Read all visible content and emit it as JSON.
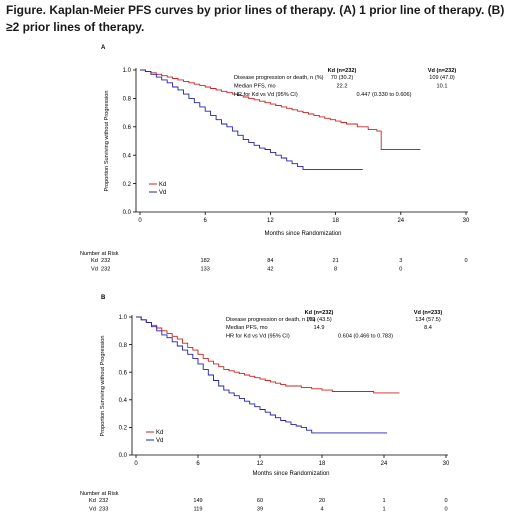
{
  "figure": {
    "title": "Figure. Kaplan-Meier PFS curves by prior lines of therapy. (A) 1 prior line of therapy. (B) ≥2 prior lines of therapy."
  },
  "colors": {
    "kd": "#cc2222",
    "vd": "#2222aa",
    "axis": "#000000"
  },
  "chart_data": [
    {
      "type": "line",
      "panel_label": "A",
      "xlabel": "Months since Randomization",
      "ylabel": "Proportion Surviving without Progression",
      "xlim": [
        0,
        30
      ],
      "ylim": [
        0,
        1.0
      ],
      "xticks": [
        0,
        6,
        12,
        18,
        24,
        30
      ],
      "yticks": [
        0.0,
        0.2,
        0.4,
        0.6,
        0.8,
        1.0
      ],
      "ytick_labels": [
        "0.0",
        "0.2",
        "0.4",
        "0.6",
        "0.8",
        "1.0"
      ],
      "legend": [
        "Kd",
        "Vd"
      ],
      "legend_position": "bottom-left",
      "stats": {
        "headers": [
          "Kd (n=232)",
          "Vd (n=232)"
        ],
        "rows": [
          {
            "label": "Disease progression or death, n (%)",
            "kd": "70 (30.2)",
            "vd": "109 (47.0)"
          },
          {
            "label": "Median PFS, mo",
            "kd": "22.2",
            "vd": "10.1"
          },
          {
            "label": "HR for Kd vs Vd (95% CI)",
            "hr": "0.447 (0.330 to 0.606)"
          }
        ]
      },
      "series": [
        {
          "name": "Kd",
          "color": "#cc2222",
          "x": [
            0,
            0.5,
            1,
            1.5,
            2,
            2.5,
            3,
            3.5,
            4,
            4.5,
            5,
            5.5,
            6,
            6.5,
            7,
            7.5,
            8,
            8.5,
            9,
            9.5,
            10,
            10.5,
            11,
            11.5,
            12,
            12.5,
            13,
            13.5,
            14,
            14.5,
            15,
            15.5,
            16,
            16.5,
            17,
            17.5,
            18,
            18.5,
            19,
            20,
            21,
            21.8,
            22.2,
            24,
            25.8
          ],
          "y": [
            1.0,
            0.99,
            0.98,
            0.97,
            0.96,
            0.95,
            0.94,
            0.93,
            0.92,
            0.91,
            0.9,
            0.89,
            0.88,
            0.87,
            0.86,
            0.85,
            0.84,
            0.83,
            0.82,
            0.81,
            0.8,
            0.79,
            0.78,
            0.77,
            0.76,
            0.75,
            0.74,
            0.73,
            0.72,
            0.71,
            0.7,
            0.69,
            0.68,
            0.67,
            0.66,
            0.65,
            0.64,
            0.63,
            0.62,
            0.6,
            0.58,
            0.57,
            0.44,
            0.44,
            0.44
          ]
        },
        {
          "name": "Vd",
          "color": "#2222aa",
          "x": [
            0,
            0.5,
            1,
            1.5,
            2,
            2.5,
            3,
            3.5,
            4,
            4.5,
            5,
            5.5,
            6,
            6.5,
            7,
            7.5,
            8,
            8.5,
            9,
            9.5,
            10,
            10.5,
            11,
            11.5,
            12,
            12.5,
            13,
            13.5,
            14,
            14.5,
            15,
            16,
            17,
            18,
            19,
            20.5
          ],
          "y": [
            1.0,
            0.99,
            0.97,
            0.95,
            0.93,
            0.91,
            0.88,
            0.86,
            0.83,
            0.8,
            0.77,
            0.74,
            0.71,
            0.68,
            0.65,
            0.62,
            0.6,
            0.57,
            0.54,
            0.51,
            0.49,
            0.47,
            0.45,
            0.44,
            0.42,
            0.4,
            0.38,
            0.36,
            0.34,
            0.32,
            0.3,
            0.3,
            0.3,
            0.3,
            0.3,
            0.3
          ]
        }
      ],
      "risk_table": {
        "title": "Number at Risk",
        "times": [
          0,
          6,
          12,
          18,
          24,
          30
        ],
        "rows": [
          {
            "name": "Kd",
            "n": "232",
            "values": [
              "182",
              "84",
              "21",
              "3",
              "0"
            ]
          },
          {
            "name": "Vd",
            "n": "232",
            "values": [
              "133",
              "42",
              "8",
              "0",
              ""
            ]
          }
        ]
      }
    },
    {
      "type": "line",
      "panel_label": "B",
      "xlabel": "Months since Randomization",
      "ylabel": "Proportion Surviving without Progression",
      "xlim": [
        0,
        30
      ],
      "ylim": [
        0,
        1.0
      ],
      "xticks": [
        0,
        6,
        12,
        18,
        24,
        30
      ],
      "yticks": [
        0.0,
        0.2,
        0.4,
        0.6,
        0.8,
        1.0
      ],
      "ytick_labels": [
        "0.0",
        "0.2",
        "0.4",
        "0.6",
        "0.8",
        "1.0"
      ],
      "legend": [
        "Kd",
        "Vd"
      ],
      "legend_position": "bottom-left",
      "stats": {
        "headers": [
          "Kd (n=232)",
          "Vd (n=233)"
        ],
        "rows": [
          {
            "label": "Disease progression or death, n (%)",
            "kd": "101 (43.5)",
            "vd": "134 (57.5)"
          },
          {
            "label": "Median PFS, mo",
            "kd": "14.9",
            "vd": "8.4"
          },
          {
            "label": "HR for Kd vs Vd (95% CI)",
            "hr": "0.604 (0.466 to 0.783)"
          }
        ]
      },
      "series": [
        {
          "name": "Kd",
          "color": "#cc2222",
          "x": [
            0,
            0.5,
            1,
            1.5,
            2,
            2.5,
            3,
            3.5,
            4,
            4.5,
            5,
            5.5,
            6,
            6.5,
            7,
            7.5,
            8,
            8.5,
            9,
            9.5,
            10,
            10.5,
            11,
            11.5,
            12,
            12.5,
            13,
            13.5,
            14,
            14.5,
            15,
            16,
            17,
            18,
            19,
            20,
            21,
            22,
            23,
            24,
            25.5
          ],
          "y": [
            1.0,
            0.98,
            0.96,
            0.94,
            0.92,
            0.9,
            0.88,
            0.86,
            0.84,
            0.81,
            0.78,
            0.76,
            0.73,
            0.7,
            0.68,
            0.66,
            0.64,
            0.62,
            0.61,
            0.6,
            0.59,
            0.58,
            0.57,
            0.56,
            0.55,
            0.54,
            0.53,
            0.52,
            0.51,
            0.5,
            0.5,
            0.49,
            0.48,
            0.47,
            0.46,
            0.46,
            0.46,
            0.46,
            0.45,
            0.45,
            0.45
          ]
        },
        {
          "name": "Vd",
          "color": "#2222aa",
          "x": [
            0,
            0.5,
            1,
            1.5,
            2,
            2.5,
            3,
            3.5,
            4,
            4.5,
            5,
            5.5,
            6,
            6.5,
            7,
            7.5,
            8,
            8.5,
            9,
            9.5,
            10,
            10.5,
            11,
            11.5,
            12,
            12.5,
            13,
            13.5,
            14,
            14.5,
            15,
            15.5,
            16,
            16.5,
            17,
            18,
            19,
            20,
            21,
            22,
            23,
            24.3
          ],
          "y": [
            1.0,
            0.98,
            0.96,
            0.93,
            0.9,
            0.87,
            0.85,
            0.82,
            0.79,
            0.76,
            0.73,
            0.7,
            0.66,
            0.62,
            0.58,
            0.54,
            0.5,
            0.47,
            0.45,
            0.43,
            0.41,
            0.39,
            0.37,
            0.35,
            0.33,
            0.31,
            0.29,
            0.27,
            0.25,
            0.24,
            0.22,
            0.21,
            0.2,
            0.18,
            0.16,
            0.16,
            0.16,
            0.16,
            0.16,
            0.16,
            0.16,
            0.16
          ]
        }
      ],
      "risk_table": {
        "title": "Number at Risk",
        "times": [
          0,
          6,
          12,
          18,
          24,
          30
        ],
        "rows": [
          {
            "name": "Kd",
            "n": "232",
            "values": [
              "149",
              "60",
              "20",
              "1",
              "0"
            ]
          },
          {
            "name": "Vd",
            "n": "233",
            "values": [
              "119",
              "39",
              "4",
              "1",
              "0"
            ]
          }
        ]
      }
    }
  ]
}
